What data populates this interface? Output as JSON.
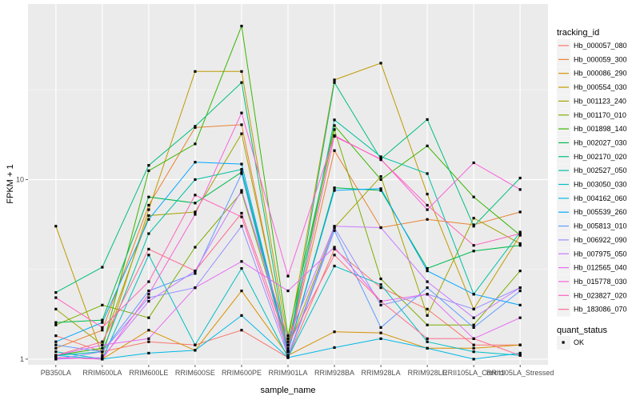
{
  "chart_data": {
    "type": "line",
    "title": "",
    "xlabel": "sample_name",
    "ylabel": "FPKM + 1",
    "yscale": "log10",
    "ylim": [
      0.93,
      95
    ],
    "y_ticks": [
      1,
      10
    ],
    "y_tick_labels": [
      "1",
      "10"
    ],
    "y_minor_ticks": [
      3.162,
      31.62
    ],
    "grid": true,
    "legend_position": "right",
    "categories": [
      "PB350LA",
      "RRIM600LA",
      "RRIM600LE",
      "RRIM600SE",
      "RRIM600PE",
      "RRIM901LA",
      "RRIM928BA",
      "RRIM928LA",
      "RRIM928LE",
      "RRII105LA_Control",
      "RRII105LA_Stressed"
    ],
    "color_legend_title": "tracking_id",
    "shape_legend_title": "quant_status",
    "shape_legend": [
      {
        "label": "OK",
        "symbol": "square"
      }
    ],
    "series": [
      {
        "name": "Hb_000057_080",
        "color": "#F8766D",
        "values": [
          1.35,
          1.1,
          1.25,
          1.2,
          1.45,
          1.02,
          4.1,
          2.5,
          1.9,
          1.2,
          1.2
        ]
      },
      {
        "name": "Hb_000059_300",
        "color": "#EA8331",
        "values": [
          1.15,
          1.45,
          7.2,
          19.5,
          20.2,
          1.1,
          14.5,
          5.4,
          6.0,
          5.6,
          6.6
        ]
      },
      {
        "name": "Hb_000086_290",
        "color": "#D89000",
        "values": [
          1.02,
          1.0,
          1.45,
          1.12,
          2.4,
          1.05,
          1.42,
          1.4,
          1.15,
          1.15,
          1.2
        ]
      },
      {
        "name": "Hb_000554_030",
        "color": "#C09B00",
        "values": [
          5.5,
          1.05,
          6.8,
          40.0,
          40.0,
          1.25,
          35.9,
          44.5,
          8.3,
          1.9,
          4.9
        ]
      },
      {
        "name": "Hb_001123_240",
        "color": "#A3A500",
        "values": [
          1.9,
          1.2,
          6.3,
          6.6,
          18.0,
          1.15,
          5.4,
          10.4,
          1.75,
          6.1,
          4.4
        ]
      },
      {
        "name": "Hb_001170_010",
        "color": "#7CAE00",
        "values": [
          1.55,
          2.0,
          1.7,
          4.2,
          8.5,
          1.2,
          19.0,
          2.8,
          1.55,
          1.55,
          3.1
        ]
      },
      {
        "name": "Hb_001898_140",
        "color": "#39B600",
        "values": [
          1.05,
          1.15,
          11.2,
          15.8,
          71.6,
          1.35,
          20.0,
          10.0,
          15.4,
          8.0,
          4.9
        ]
      },
      {
        "name": "Hb_002027_030",
        "color": "#00BB4E",
        "values": [
          1.6,
          1.65,
          8.0,
          7.4,
          11.0,
          1.1,
          9.0,
          8.7,
          3.2,
          4.0,
          4.3
        ]
      },
      {
        "name": "Hb_002170_020",
        "color": "#00BF7D",
        "values": [
          2.35,
          3.25,
          12.0,
          19.8,
          34.7,
          1.1,
          34.7,
          13.0,
          21.6,
          5.5,
          10.2
        ]
      },
      {
        "name": "Hb_002527_050",
        "color": "#00C1A3",
        "values": [
          1.05,
          1.1,
          5.0,
          10.0,
          11.4,
          1.12,
          21.5,
          13.4,
          10.8,
          2.3,
          5.1
        ]
      },
      {
        "name": "Hb_003050_030",
        "color": "#00BFC4",
        "values": [
          1.1,
          1.0,
          3.8,
          1.2,
          3.2,
          1.02,
          3.3,
          2.6,
          1.25,
          1.1,
          1.05
        ]
      },
      {
        "name": "Hb_004162_060",
        "color": "#00B8E5",
        "values": [
          1.05,
          1.0,
          1.08,
          1.12,
          1.75,
          1.02,
          1.16,
          1.3,
          1.15,
          1.0,
          1.08
        ]
      },
      {
        "name": "Hb_005539_260",
        "color": "#00A9FF",
        "values": [
          1.25,
          1.6,
          6.0,
          12.5,
          12.2,
          1.1,
          8.7,
          8.9,
          3.1,
          2.3,
          2.0
        ]
      },
      {
        "name": "Hb_005813_010",
        "color": "#619CFF",
        "values": [
          1.2,
          1.1,
          2.4,
          3.0,
          10.8,
          1.03,
          5.2,
          1.5,
          2.5,
          1.5,
          2.4
        ]
      },
      {
        "name": "Hb_006922_090",
        "color": "#9590FF",
        "values": [
          1.0,
          1.1,
          2.2,
          2.5,
          5.5,
          1.05,
          5.4,
          2.0,
          2.3,
          1.9,
          2.5
        ]
      },
      {
        "name": "Hb_007975_050",
        "color": "#C77CFF",
        "values": [
          1.0,
          1.02,
          2.1,
          3.1,
          8.7,
          1.3,
          5.5,
          5.4,
          2.7,
          1.7,
          2.5
        ]
      },
      {
        "name": "Hb_012565_040",
        "color": "#E76BF3",
        "values": [
          1.05,
          1.2,
          1.3,
          2.5,
          3.5,
          2.4,
          4.2,
          2.1,
          2.3,
          1.3,
          1.7
        ]
      },
      {
        "name": "Hb_015778_030",
        "color": "#FA62DB",
        "values": [
          1.02,
          1.0,
          2.3,
          6.4,
          23.5,
          2.9,
          17.4,
          13.0,
          6.8,
          12.4,
          8.8
        ]
      },
      {
        "name": "Hb_023827_020",
        "color": "#FF62BC",
        "values": [
          2.2,
          1.5,
          2.7,
          8.2,
          6.2,
          1.1,
          17.6,
          12.9,
          7.2,
          4.3,
          5.0
        ]
      },
      {
        "name": "Hb_183086_070",
        "color": "#FF6C91",
        "values": [
          1.05,
          1.25,
          4.1,
          3.1,
          6.5,
          1.2,
          3.8,
          2.1,
          1.3,
          1.3,
          1.05
        ]
      }
    ]
  }
}
